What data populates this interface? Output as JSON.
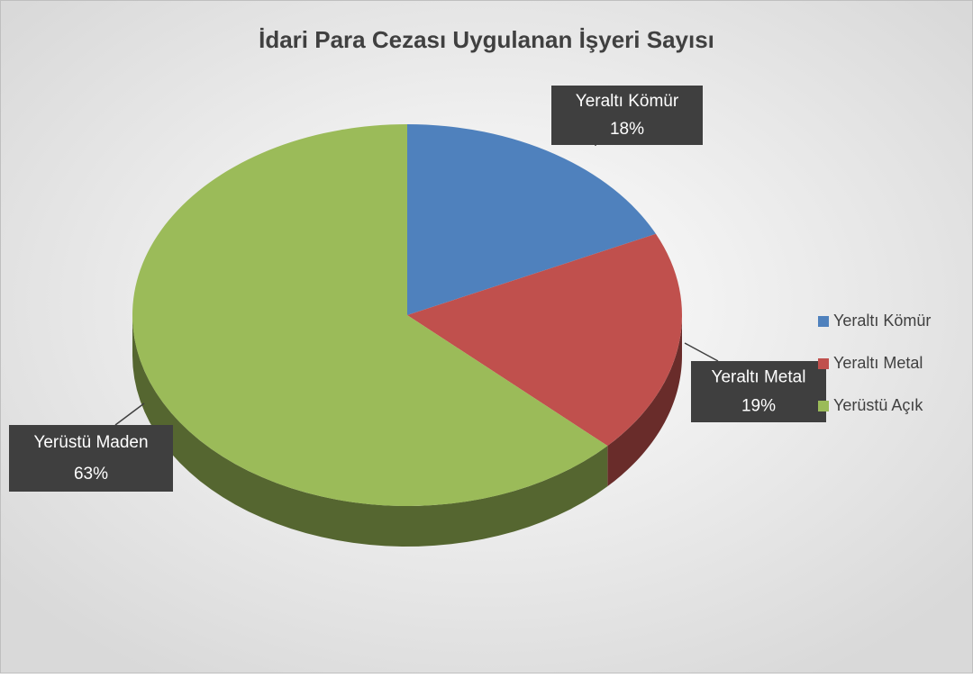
{
  "chart_data": {
    "type": "pie",
    "title": "İdari Para Cezası Uygulanan İşyeri Sayısı",
    "categories": [
      "Yeraltı Kömür",
      "Yeraltı Metal",
      "Yerüstü Açık"
    ],
    "data_label_names": [
      "Yeraltı Kömür",
      "Yeraltı Metal",
      "Yerüstü Maden"
    ],
    "values": [
      18,
      19,
      63
    ],
    "value_labels": [
      "18%",
      "19%",
      "63%"
    ],
    "colors": [
      "#4f81bd",
      "#c0504d",
      "#9bbb59"
    ],
    "legend": "right"
  }
}
